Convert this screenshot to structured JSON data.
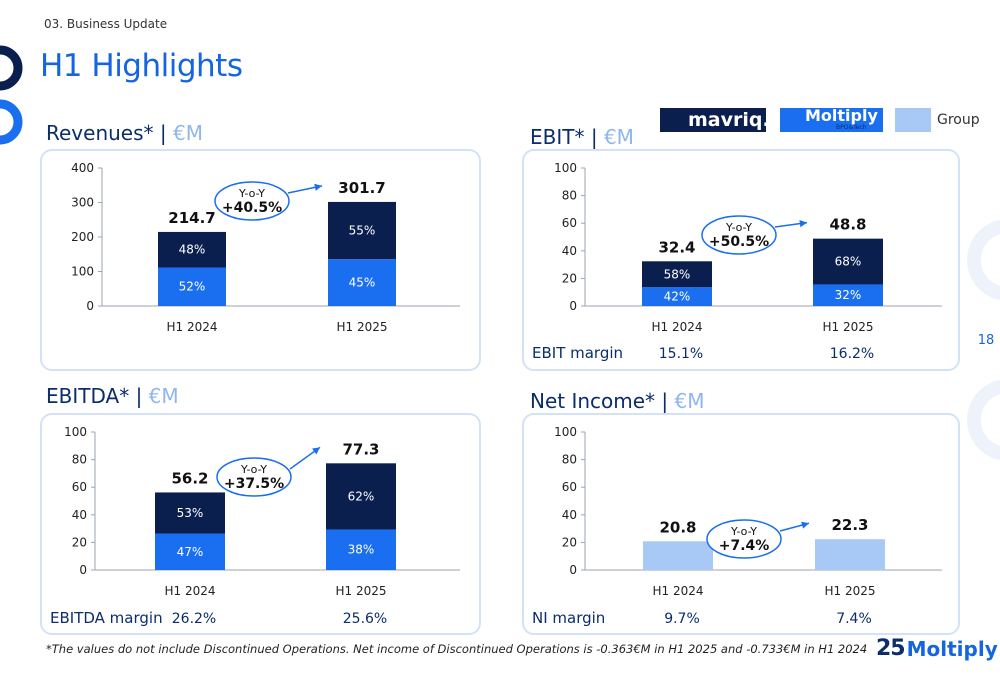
{
  "section_label": "03. Business Update",
  "page_title": "H1 Highlights",
  "page_number": "18",
  "legend": {
    "mavriq": "mavriq.",
    "moltiply": "Moltiply",
    "moltiply_sub": "BPO&Tech",
    "group": "Group"
  },
  "colors": {
    "mavriq": "#0b1f4f",
    "moltiply": "#1a6ff0",
    "group": "#a8c8f6",
    "accent": "#1565e0"
  },
  "footnote": "*The values do not include Discontinued Operations. Net income of Discontinued Operations is -0.363€M in H1 2025 and -0.733€M in H1 2024",
  "logo": {
    "number": "25",
    "name": "Moltiply"
  },
  "chart_data": [
    {
      "type": "bar",
      "title": "Revenues*",
      "unit": "€M",
      "categories": [
        "H1 2024",
        "H1 2025"
      ],
      "totals": [
        214.7,
        301.7
      ],
      "total_labels": [
        "214.7",
        "301.7"
      ],
      "series": [
        {
          "name": "Moltiply",
          "share_labels": [
            "52%",
            "45%"
          ],
          "shares": [
            52,
            45
          ]
        },
        {
          "name": "mavriq",
          "share_labels": [
            "48%",
            "55%"
          ],
          "shares": [
            48,
            55
          ]
        }
      ],
      "yticks": [
        "400",
        "300",
        "200",
        "100",
        "0"
      ],
      "ylim": [
        0,
        400
      ],
      "yoy": {
        "label": "Y-o-Y",
        "value": "+40.5%"
      },
      "margin": null
    },
    {
      "type": "bar",
      "title": "EBIT*",
      "unit": "€M",
      "categories": [
        "H1 2024",
        "H1 2025"
      ],
      "totals": [
        32.4,
        48.8
      ],
      "total_labels": [
        "32.4",
        "48.8"
      ],
      "series": [
        {
          "name": "Moltiply",
          "share_labels": [
            "42%",
            "32%"
          ],
          "shares": [
            42,
            32
          ]
        },
        {
          "name": "mavriq",
          "share_labels": [
            "58%",
            "68%"
          ],
          "shares": [
            58,
            68
          ]
        }
      ],
      "yticks": [
        "100",
        "80",
        "60",
        "40",
        "20",
        "0"
      ],
      "ylim": [
        0,
        100
      ],
      "yoy": {
        "label": "Y-o-Y",
        "value": "+50.5%"
      },
      "margin": {
        "label": "EBIT margin",
        "values": [
          "15.1%",
          "16.2%"
        ]
      }
    },
    {
      "type": "bar",
      "title": "EBITDA*",
      "unit": "€M",
      "categories": [
        "H1 2024",
        "H1 2025"
      ],
      "totals": [
        56.2,
        77.3
      ],
      "total_labels": [
        "56.2",
        "77.3"
      ],
      "series": [
        {
          "name": "Moltiply",
          "share_labels": [
            "47%",
            "38%"
          ],
          "shares": [
            47,
            38
          ]
        },
        {
          "name": "mavriq",
          "share_labels": [
            "53%",
            "62%"
          ],
          "shares": [
            53,
            62
          ]
        }
      ],
      "yticks": [
        "100",
        "80",
        "60",
        "40",
        "20",
        "0"
      ],
      "ylim": [
        0,
        100
      ],
      "yoy": {
        "label": "Y-o-Y",
        "value": "+37.5%"
      },
      "margin": {
        "label": "EBITDA margin",
        "values": [
          "26.2%",
          "25.6%"
        ]
      }
    },
    {
      "type": "bar",
      "title": "Net Income*",
      "unit": "€M",
      "categories": [
        "H1 2024",
        "H1 2025"
      ],
      "totals": [
        20.8,
        22.3
      ],
      "total_labels": [
        "20.8",
        "22.3"
      ],
      "series": [
        {
          "name": "Group",
          "share_labels": [
            "",
            ""
          ],
          "shares": [
            100,
            100
          ]
        }
      ],
      "yticks": [
        "100",
        "80",
        "60",
        "40",
        "20",
        "0"
      ],
      "ylim": [
        0,
        100
      ],
      "yoy": {
        "label": "Y-o-Y",
        "value": "+7.4%"
      },
      "margin": {
        "label": "NI margin",
        "values": [
          "9.7%",
          "7.4%"
        ]
      }
    }
  ]
}
